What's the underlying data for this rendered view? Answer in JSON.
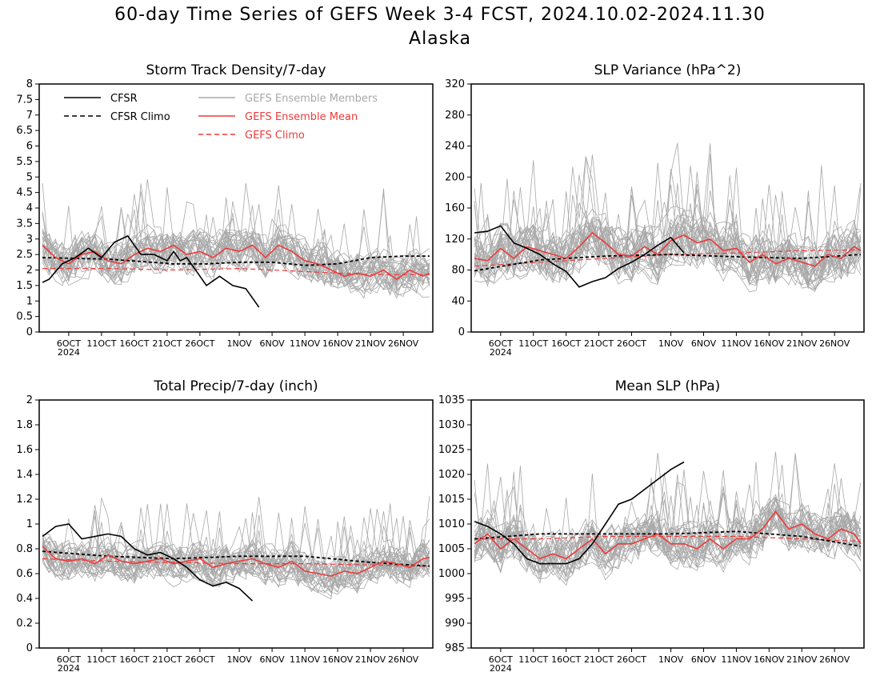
{
  "header": {
    "title": "60-day Time Series of GEFS Week 3-4 FCST, 2024.10.02-2024.11.30",
    "subtitle": "Alaska"
  },
  "colors": {
    "members": "#a8a8a8",
    "cfsr": "#000000",
    "cfsr_climo": "#000000",
    "gefs_mean": "#ee3a3a",
    "gefs_climo": "#ee3a3a"
  },
  "legend": {
    "cfsr": "CFSR",
    "cfsr_climo": "CFSR Climo",
    "members": "GEFS Ensemble Members",
    "gefs_mean": "GEFS Ensemble Mean",
    "gefs_climo": "GEFS Climo"
  },
  "x_ticks": {
    "labels": [
      "6OCT",
      "11OCT",
      "16OCT",
      "21OCT",
      "26OCT",
      "1NOV",
      "6NOV",
      "11NOV",
      "16NOV",
      "21NOV",
      "26NOV"
    ],
    "day_index": [
      4,
      9,
      14,
      19,
      24,
      30,
      35,
      40,
      45,
      50,
      55
    ],
    "year_label": "2024",
    "n_days": 60
  },
  "chart_data": [
    {
      "type": "line",
      "title": "Storm Track Density/7-day",
      "ylim": [
        0,
        8
      ],
      "yticks": [
        "0",
        "0.5",
        "1",
        "1.5",
        "2",
        "2.5",
        "3",
        "3.5",
        "4",
        "4.5",
        "5",
        "5.5",
        "6",
        "6.5",
        "7",
        "7.5",
        "8"
      ],
      "ensemble_members": 31,
      "member_spread": 0.9,
      "series": [
        {
          "name": "CFSR",
          "kind": "cfsr",
          "x": [
            0,
            1,
            3,
            5,
            7,
            9,
            11,
            13,
            15,
            17,
            19,
            20,
            21,
            22,
            23,
            25,
            27,
            29,
            31,
            33
          ],
          "y": [
            1.6,
            1.7,
            2.2,
            2.4,
            2.7,
            2.4,
            2.9,
            3.1,
            2.5,
            2.5,
            2.3,
            2.6,
            2.3,
            2.4,
            2.1,
            1.5,
            1.8,
            1.5,
            1.4,
            0.8
          ]
        },
        {
          "name": "CFSR Climo",
          "kind": "cfsr_climo",
          "x": [
            0,
            10,
            20,
            25,
            30,
            35,
            40,
            45,
            50,
            55,
            59
          ],
          "y": [
            2.4,
            2.35,
            2.2,
            2.2,
            2.25,
            2.25,
            2.15,
            2.2,
            2.4,
            2.45,
            2.45
          ]
        },
        {
          "name": "GEFS Ensemble Mean",
          "kind": "gefs_mean",
          "x": [
            0,
            2,
            4,
            6,
            8,
            10,
            12,
            14,
            16,
            18,
            20,
            22,
            24,
            26,
            28,
            30,
            32,
            34,
            36,
            38,
            40,
            42,
            44,
            46,
            48,
            50,
            52,
            54,
            56,
            58,
            59
          ],
          "y": [
            2.8,
            2.4,
            2.2,
            2.5,
            2.6,
            2.3,
            2.2,
            2.5,
            2.7,
            2.6,
            2.8,
            2.5,
            2.6,
            2.4,
            2.7,
            2.6,
            2.8,
            2.4,
            2.8,
            2.6,
            2.3,
            2.2,
            2.0,
            1.8,
            1.9,
            1.8,
            2.0,
            1.7,
            2.0,
            1.8,
            1.9
          ]
        },
        {
          "name": "GEFS Climo",
          "kind": "gefs_climo",
          "x": [
            0,
            10,
            20,
            30,
            40,
            50,
            59
          ],
          "y": [
            2.05,
            2.05,
            2.0,
            2.05,
            1.95,
            1.85,
            1.85
          ]
        }
      ]
    },
    {
      "type": "line",
      "title": "SLP Variance (hPa^2)",
      "ylim": [
        0,
        320
      ],
      "yticks": [
        "0",
        "40",
        "80",
        "120",
        "160",
        "200",
        "240",
        "280",
        "320"
      ],
      "ensemble_members": 31,
      "member_spread": 45,
      "series": [
        {
          "name": "CFSR",
          "kind": "cfsr",
          "x": [
            0,
            2,
            4,
            6,
            8,
            10,
            12,
            14,
            16,
            18,
            20,
            22,
            24,
            26,
            28,
            30,
            32
          ],
          "y": [
            128,
            130,
            137,
            115,
            108,
            100,
            88,
            78,
            58,
            65,
            70,
            82,
            90,
            100,
            112,
            122,
            102
          ]
        },
        {
          "name": "CFSR Climo",
          "kind": "cfsr_climo",
          "x": [
            0,
            10,
            20,
            30,
            40,
            50,
            59
          ],
          "y": [
            79,
            93,
            98,
            100,
            97,
            95,
            100
          ]
        },
        {
          "name": "GEFS Ensemble Mean",
          "kind": "gefs_mean",
          "x": [
            0,
            2,
            4,
            6,
            8,
            10,
            12,
            14,
            16,
            18,
            20,
            22,
            24,
            26,
            28,
            30,
            32,
            34,
            36,
            38,
            40,
            42,
            44,
            46,
            48,
            50,
            52,
            54,
            56,
            58,
            59
          ],
          "y": [
            95,
            92,
            108,
            95,
            110,
            105,
            100,
            95,
            110,
            128,
            115,
            100,
            98,
            110,
            100,
            118,
            125,
            115,
            120,
            105,
            108,
            90,
            100,
            88,
            95,
            90,
            85,
            100,
            95,
            110,
            105
          ]
        },
        {
          "name": "GEFS Climo",
          "kind": "gefs_climo",
          "x": [
            0,
            10,
            20,
            30,
            40,
            50,
            59
          ],
          "y": [
            85,
            90,
            95,
            100,
            102,
            105,
            106
          ]
        }
      ]
    },
    {
      "type": "line",
      "title": "Total Precip/7-day (inch)",
      "ylim": [
        0,
        2
      ],
      "yticks": [
        "0",
        "0.2",
        "0.4",
        "0.6",
        "0.8",
        "1",
        "1.2",
        "1.4",
        "1.6",
        "1.8",
        "2"
      ],
      "ensemble_members": 31,
      "member_spread": 0.2,
      "series": [
        {
          "name": "CFSR",
          "kind": "cfsr",
          "x": [
            0,
            2,
            4,
            6,
            8,
            10,
            12,
            14,
            16,
            18,
            20,
            22,
            24,
            26,
            28,
            30,
            32
          ],
          "y": [
            0.9,
            0.98,
            1.0,
            0.88,
            0.9,
            0.92,
            0.9,
            0.8,
            0.75,
            0.77,
            0.72,
            0.65,
            0.55,
            0.5,
            0.53,
            0.48,
            0.38
          ]
        },
        {
          "name": "CFSR Climo",
          "kind": "cfsr_climo",
          "x": [
            0,
            10,
            20,
            30,
            40,
            50,
            59
          ],
          "y": [
            0.78,
            0.74,
            0.72,
            0.74,
            0.74,
            0.69,
            0.66
          ]
        },
        {
          "name": "GEFS Ensemble Mean",
          "kind": "gefs_mean",
          "x": [
            0,
            2,
            4,
            6,
            8,
            10,
            12,
            14,
            16,
            18,
            20,
            22,
            24,
            26,
            28,
            30,
            32,
            34,
            36,
            38,
            40,
            42,
            44,
            46,
            48,
            50,
            52,
            54,
            56,
            58,
            59
          ],
          "y": [
            0.82,
            0.72,
            0.7,
            0.72,
            0.68,
            0.75,
            0.7,
            0.68,
            0.7,
            0.72,
            0.68,
            0.7,
            0.72,
            0.65,
            0.68,
            0.7,
            0.72,
            0.68,
            0.65,
            0.7,
            0.62,
            0.6,
            0.58,
            0.62,
            0.6,
            0.65,
            0.7,
            0.68,
            0.65,
            0.72,
            0.73
          ]
        },
        {
          "name": "GEFS Climo",
          "kind": "gefs_climo",
          "x": [
            0,
            10,
            20,
            30,
            40,
            50,
            59
          ],
          "y": [
            0.72,
            0.7,
            0.69,
            0.68,
            0.68,
            0.67,
            0.66
          ]
        }
      ]
    },
    {
      "type": "line",
      "title": "Mean SLP (hPa)",
      "ylim": [
        985,
        1035
      ],
      "yticks": [
        "985",
        "990",
        "995",
        "1000",
        "1005",
        "1010",
        "1015",
        "1020",
        "1025",
        "1030",
        "1035"
      ],
      "ensemble_members": 31,
      "member_spread": 6,
      "series": [
        {
          "name": "CFSR",
          "kind": "cfsr",
          "x": [
            0,
            2,
            4,
            6,
            8,
            10,
            12,
            14,
            16,
            18,
            20,
            22,
            24,
            26,
            28,
            30,
            32
          ],
          "y": [
            1010.5,
            1009.5,
            1008,
            1006,
            1003,
            1002,
            1002,
            1002,
            1003,
            1006,
            1010,
            1014,
            1015,
            1017,
            1019,
            1021,
            1022.5
          ]
        },
        {
          "name": "CFSR Climo",
          "kind": "cfsr_climo",
          "x": [
            0,
            10,
            20,
            30,
            40,
            50,
            59
          ],
          "y": [
            1007,
            1008,
            1008,
            1008,
            1008.5,
            1007.5,
            1005.5
          ]
        },
        {
          "name": "GEFS Ensemble Mean",
          "kind": "gefs_mean",
          "x": [
            0,
            2,
            4,
            6,
            8,
            10,
            12,
            14,
            16,
            18,
            20,
            22,
            24,
            26,
            28,
            30,
            32,
            34,
            36,
            38,
            40,
            42,
            44,
            46,
            48,
            50,
            52,
            54,
            56,
            58,
            59
          ],
          "y": [
            1006,
            1008,
            1005,
            1007,
            1005,
            1003,
            1004,
            1003,
            1005,
            1007,
            1004,
            1006,
            1006,
            1007,
            1008,
            1006,
            1006,
            1005,
            1007,
            1005,
            1007,
            1007,
            1009,
            1012.5,
            1009,
            1010,
            1008,
            1007,
            1009,
            1008,
            1006
          ]
        },
        {
          "name": "GEFS Climo",
          "kind": "gefs_climo",
          "x": [
            0,
            10,
            20,
            30,
            40,
            50,
            59
          ],
          "y": [
            1007,
            1007,
            1007.5,
            1007.5,
            1007.5,
            1007,
            1006.5
          ]
        }
      ]
    }
  ]
}
